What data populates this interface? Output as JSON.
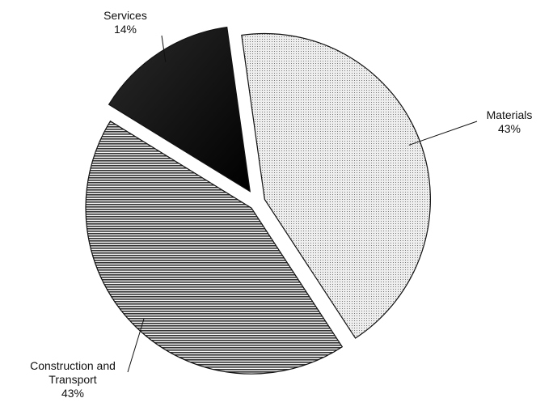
{
  "chart_data": {
    "type": "pie",
    "categories": [
      "Materials",
      "Construction and Transport",
      "Services"
    ],
    "values": [
      43,
      43,
      14
    ],
    "value_labels": [
      "43%",
      "43%",
      "14%"
    ]
  }
}
